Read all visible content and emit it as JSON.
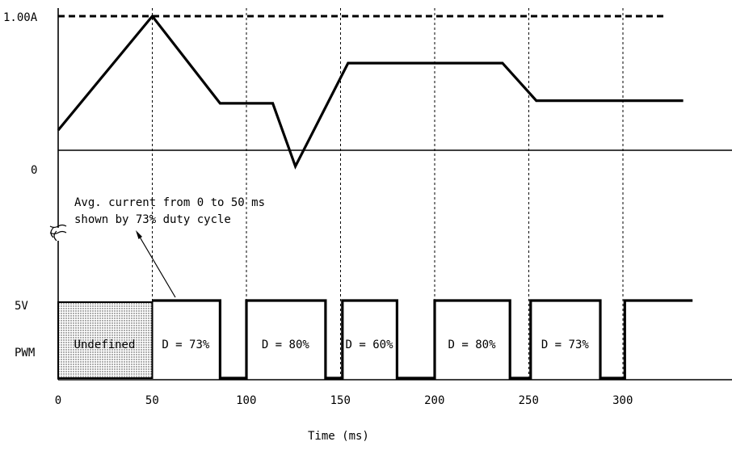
{
  "chart_data": {
    "type": "line",
    "xlabel": "Time (ms)",
    "x_ticks": [
      "0",
      "50",
      "100",
      "150",
      "200",
      "250",
      "300"
    ],
    "current": {
      "y_ticks": [
        "1.00A",
        "0"
      ],
      "points": [
        [
          0,
          0.15
        ],
        [
          50,
          1.0
        ],
        [
          86,
          0.35
        ],
        [
          114,
          0.35
        ],
        [
          126,
          -0.12
        ],
        [
          154,
          0.65
        ],
        [
          236,
          0.65
        ],
        [
          254,
          0.37
        ],
        [
          332,
          0.37
        ]
      ]
    },
    "pwm": {
      "y_labels": [
        "5V",
        "PWM"
      ],
      "segments": [
        {
          "from": 0,
          "to": 50,
          "state": "undefined",
          "label": "Undefined"
        },
        {
          "from": 50,
          "to": 86,
          "state": "high",
          "label": "D = 73%"
        },
        {
          "from": 86,
          "to": 100,
          "state": "low"
        },
        {
          "from": 100,
          "to": 142,
          "state": "high",
          "label": "D = 80%"
        },
        {
          "from": 142,
          "to": 151,
          "state": "low"
        },
        {
          "from": 151,
          "to": 180,
          "state": "high",
          "label": "D = 60%"
        },
        {
          "from": 180,
          "to": 200,
          "state": "low"
        },
        {
          "from": 200,
          "to": 240,
          "state": "high",
          "label": "D = 80%"
        },
        {
          "from": 240,
          "to": 251,
          "state": "low"
        },
        {
          "from": 251,
          "to": 288,
          "state": "high",
          "label": "D = 73%"
        },
        {
          "from": 288,
          "to": 301,
          "state": "low"
        },
        {
          "from": 301,
          "to": 337,
          "state": "high"
        }
      ]
    },
    "annotations": [
      "Avg. current from 0 to 50 ms",
      "shown by 73% duty cycle"
    ]
  }
}
